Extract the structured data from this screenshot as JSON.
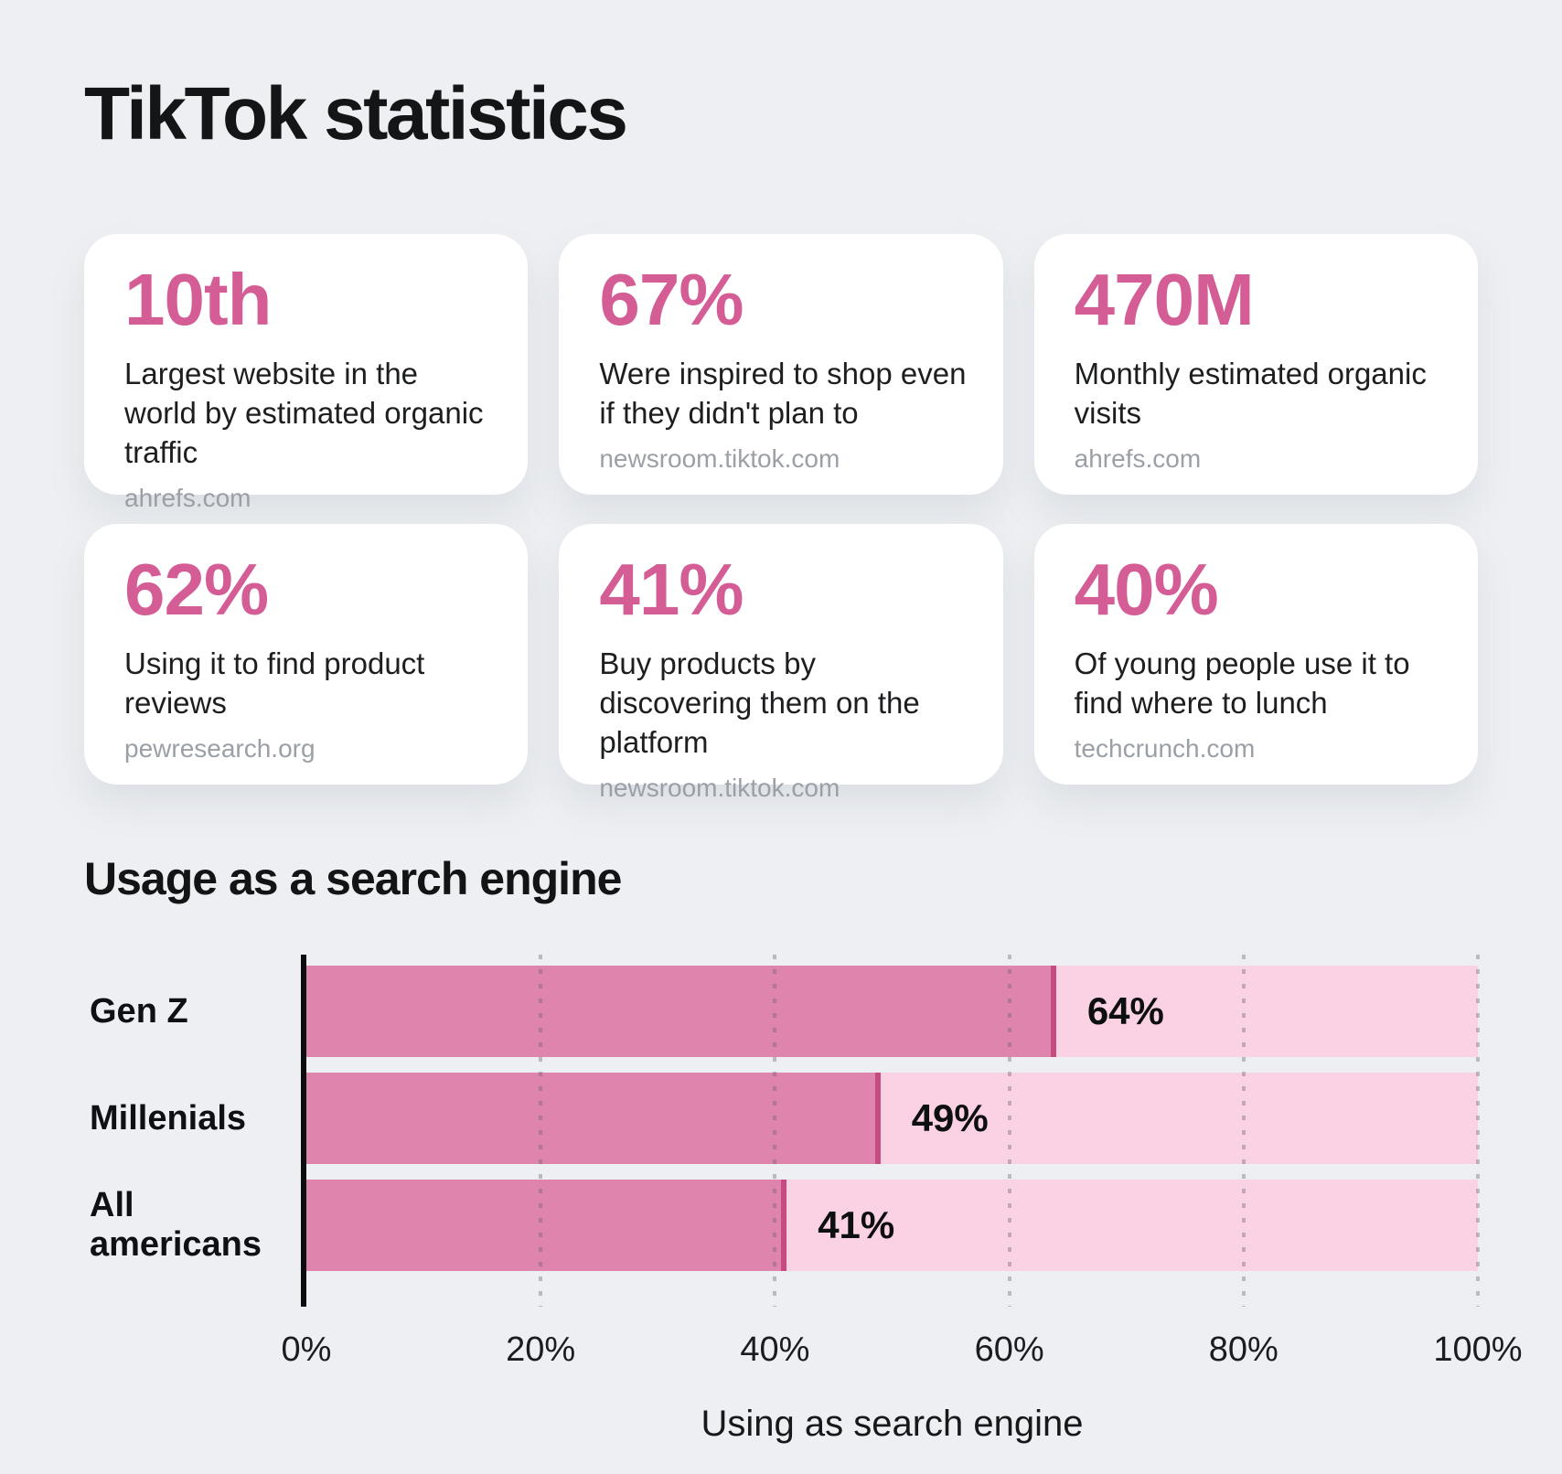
{
  "page": {
    "title": "TikTok statistics",
    "background": "#edeff2"
  },
  "colors": {
    "accent_pink": "#d45d96",
    "bar_fill": "#df84ac",
    "bar_edge": "#c54b80",
    "bar_track": "#fbd2e4",
    "source_gray": "#9aa0a6",
    "card_bg": "#ffffff"
  },
  "stats": [
    {
      "value": "10th",
      "description": "Largest website in the world by estimated organic traffic",
      "source": "ahrefs.com"
    },
    {
      "value": "67%",
      "description": "Were inspired to shop even if they didn't plan to",
      "source": "newsroom.tiktok.com"
    },
    {
      "value": "470M",
      "description": "Monthly estimated organic visits",
      "source": "ahrefs.com"
    },
    {
      "value": "62%",
      "description": "Using it to find product reviews",
      "source": "pewresearch.org"
    },
    {
      "value": "41%",
      "description": "Buy products by discovering them on the platform",
      "source": "newsroom.tiktok.com"
    },
    {
      "value": "40%",
      "description": "Of young people use it to find where to lunch",
      "source": "techcrunch.com"
    }
  ],
  "section": {
    "title": "Usage as a search engine"
  },
  "chart_data": {
    "type": "bar",
    "orientation": "horizontal",
    "title": "Usage as a search engine",
    "categories": [
      "Gen Z",
      "Millenials",
      "All americans"
    ],
    "values": [
      64,
      49,
      41
    ],
    "value_labels": [
      "64%",
      "49%",
      "41%"
    ],
    "xlabel": "Using as search engine",
    "xlim": [
      0,
      100
    ],
    "xticks": [
      "0%",
      "20%",
      "40%",
      "60%",
      "80%",
      "100%"
    ],
    "grid": "dotted-vertical",
    "legend": "none"
  }
}
